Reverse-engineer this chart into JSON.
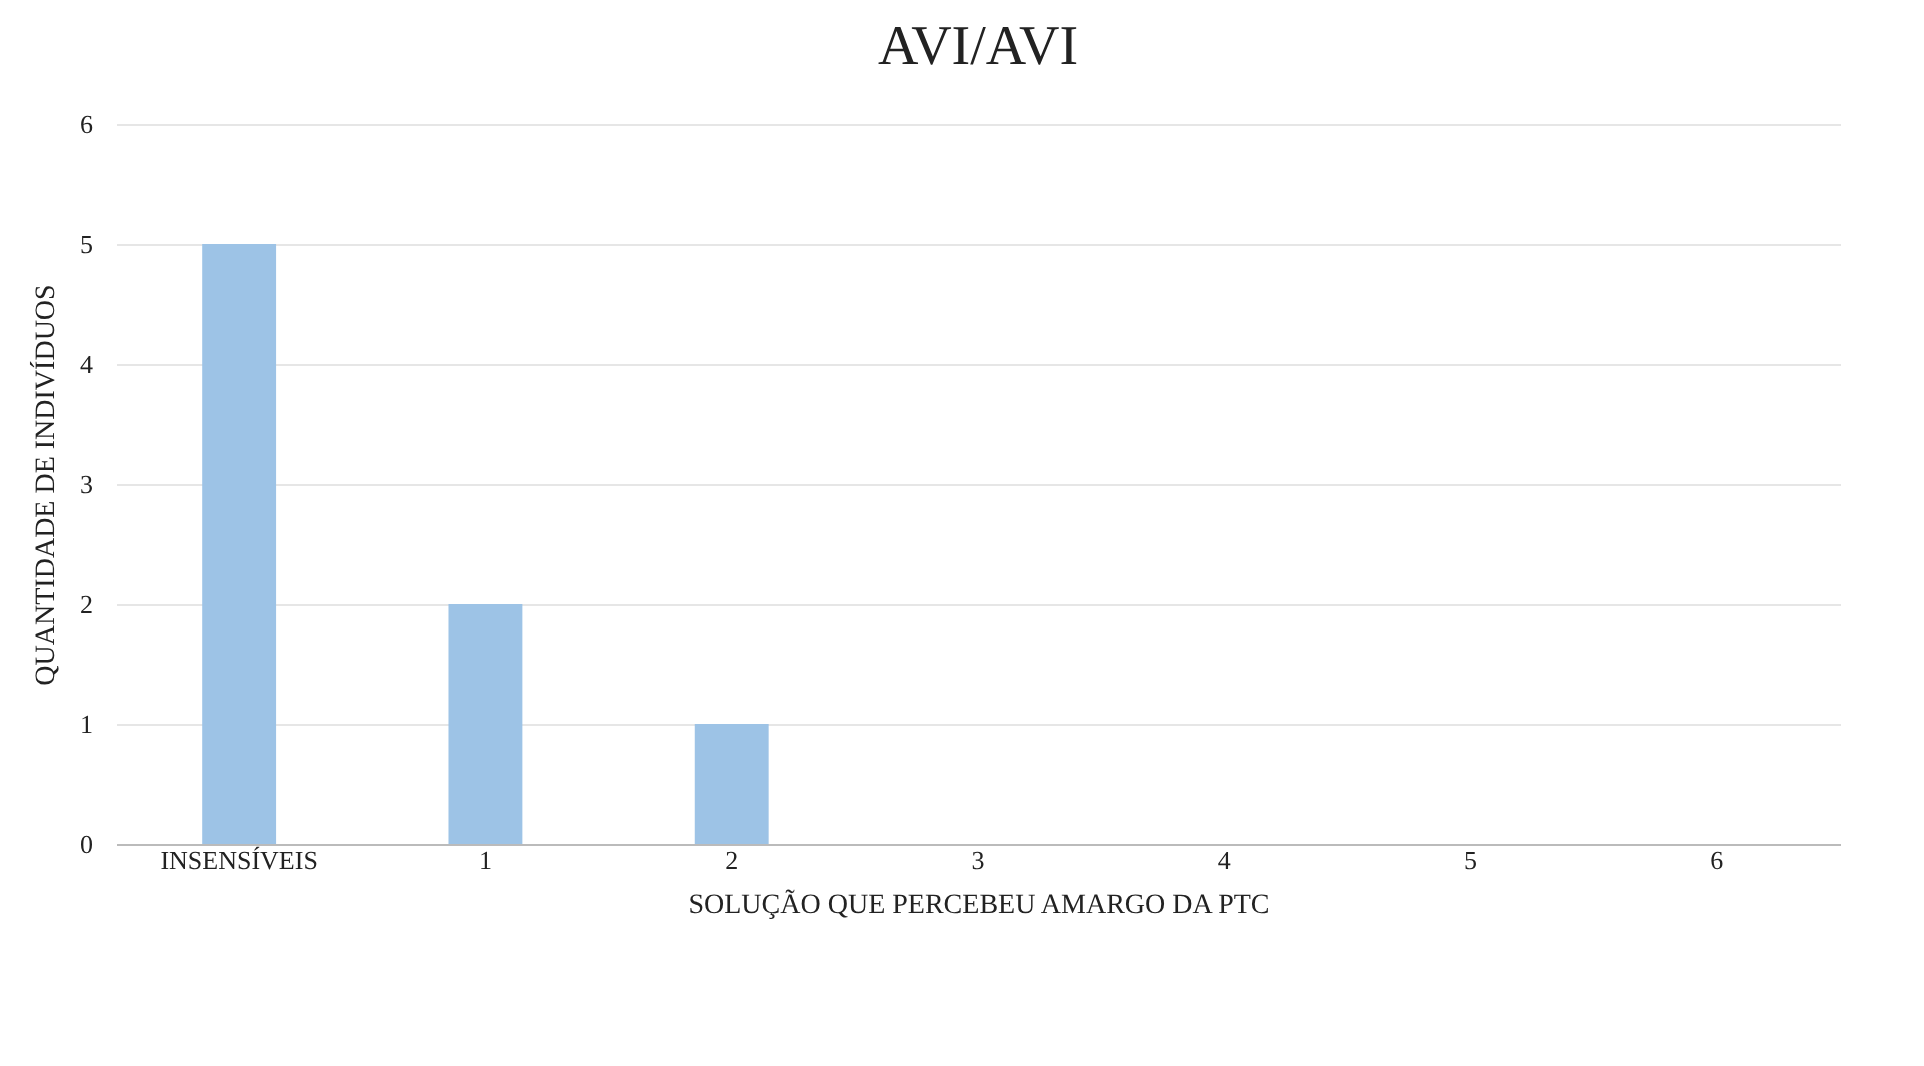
{
  "chart_data": {
    "type": "bar",
    "title": "AVI/AVI",
    "xlabel": "SOLUÇÃO QUE PERCEBEU AMARGO DA PTC",
    "ylabel": "QUANTIDADE DE INDIVÍDUOS",
    "categories": [
      "INSENSÍVEIS",
      "1",
      "2",
      "3",
      "4",
      "5",
      "6"
    ],
    "values": [
      5,
      2,
      1,
      0,
      0,
      0,
      0
    ],
    "color": "#9dc3e6",
    "ylim": [
      0,
      6
    ],
    "yticks": [
      0,
      1,
      2,
      3,
      4,
      5,
      6
    ],
    "grid": "y"
  }
}
